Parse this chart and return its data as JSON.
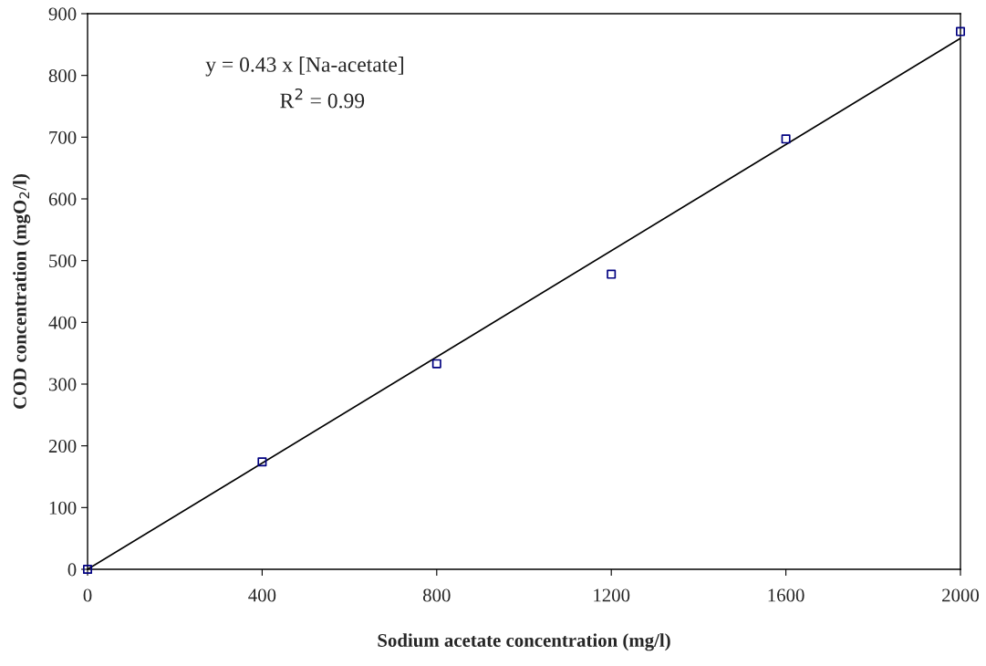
{
  "chart_data": {
    "type": "scatter",
    "xlabel": "Sodium acetate concentration (mg/l)",
    "ylabel": "COD concentration (mgO$_{2}$/l)",
    "x": [
      0,
      400,
      800,
      1200,
      1600,
      2000
    ],
    "series": [
      {
        "color": "#000080",
        "marker": "square",
        "values": [
          0,
          174,
          333,
          478,
          697,
          871
        ]
      },
      {
        "type": "line",
        "color": "#000000",
        "marker": "none",
        "line_style": "solid",
        "x": [
          0,
          2000
        ],
        "values": [
          0,
          860
        ]
      }
    ],
    "annotations": [
      "y = 0.43 x [Na-acetate]",
      "R$^{2}$ = 0.99"
    ],
    "xlim": [
      0,
      2000
    ],
    "xticks": [
      0,
      400,
      800,
      1200,
      1600,
      2000
    ],
    "ylim": [
      0,
      900
    ],
    "yticks": [
      0,
      100,
      200,
      300,
      400,
      500,
      600,
      700,
      800,
      900
    ],
    "grid": false,
    "legend": false
  }
}
